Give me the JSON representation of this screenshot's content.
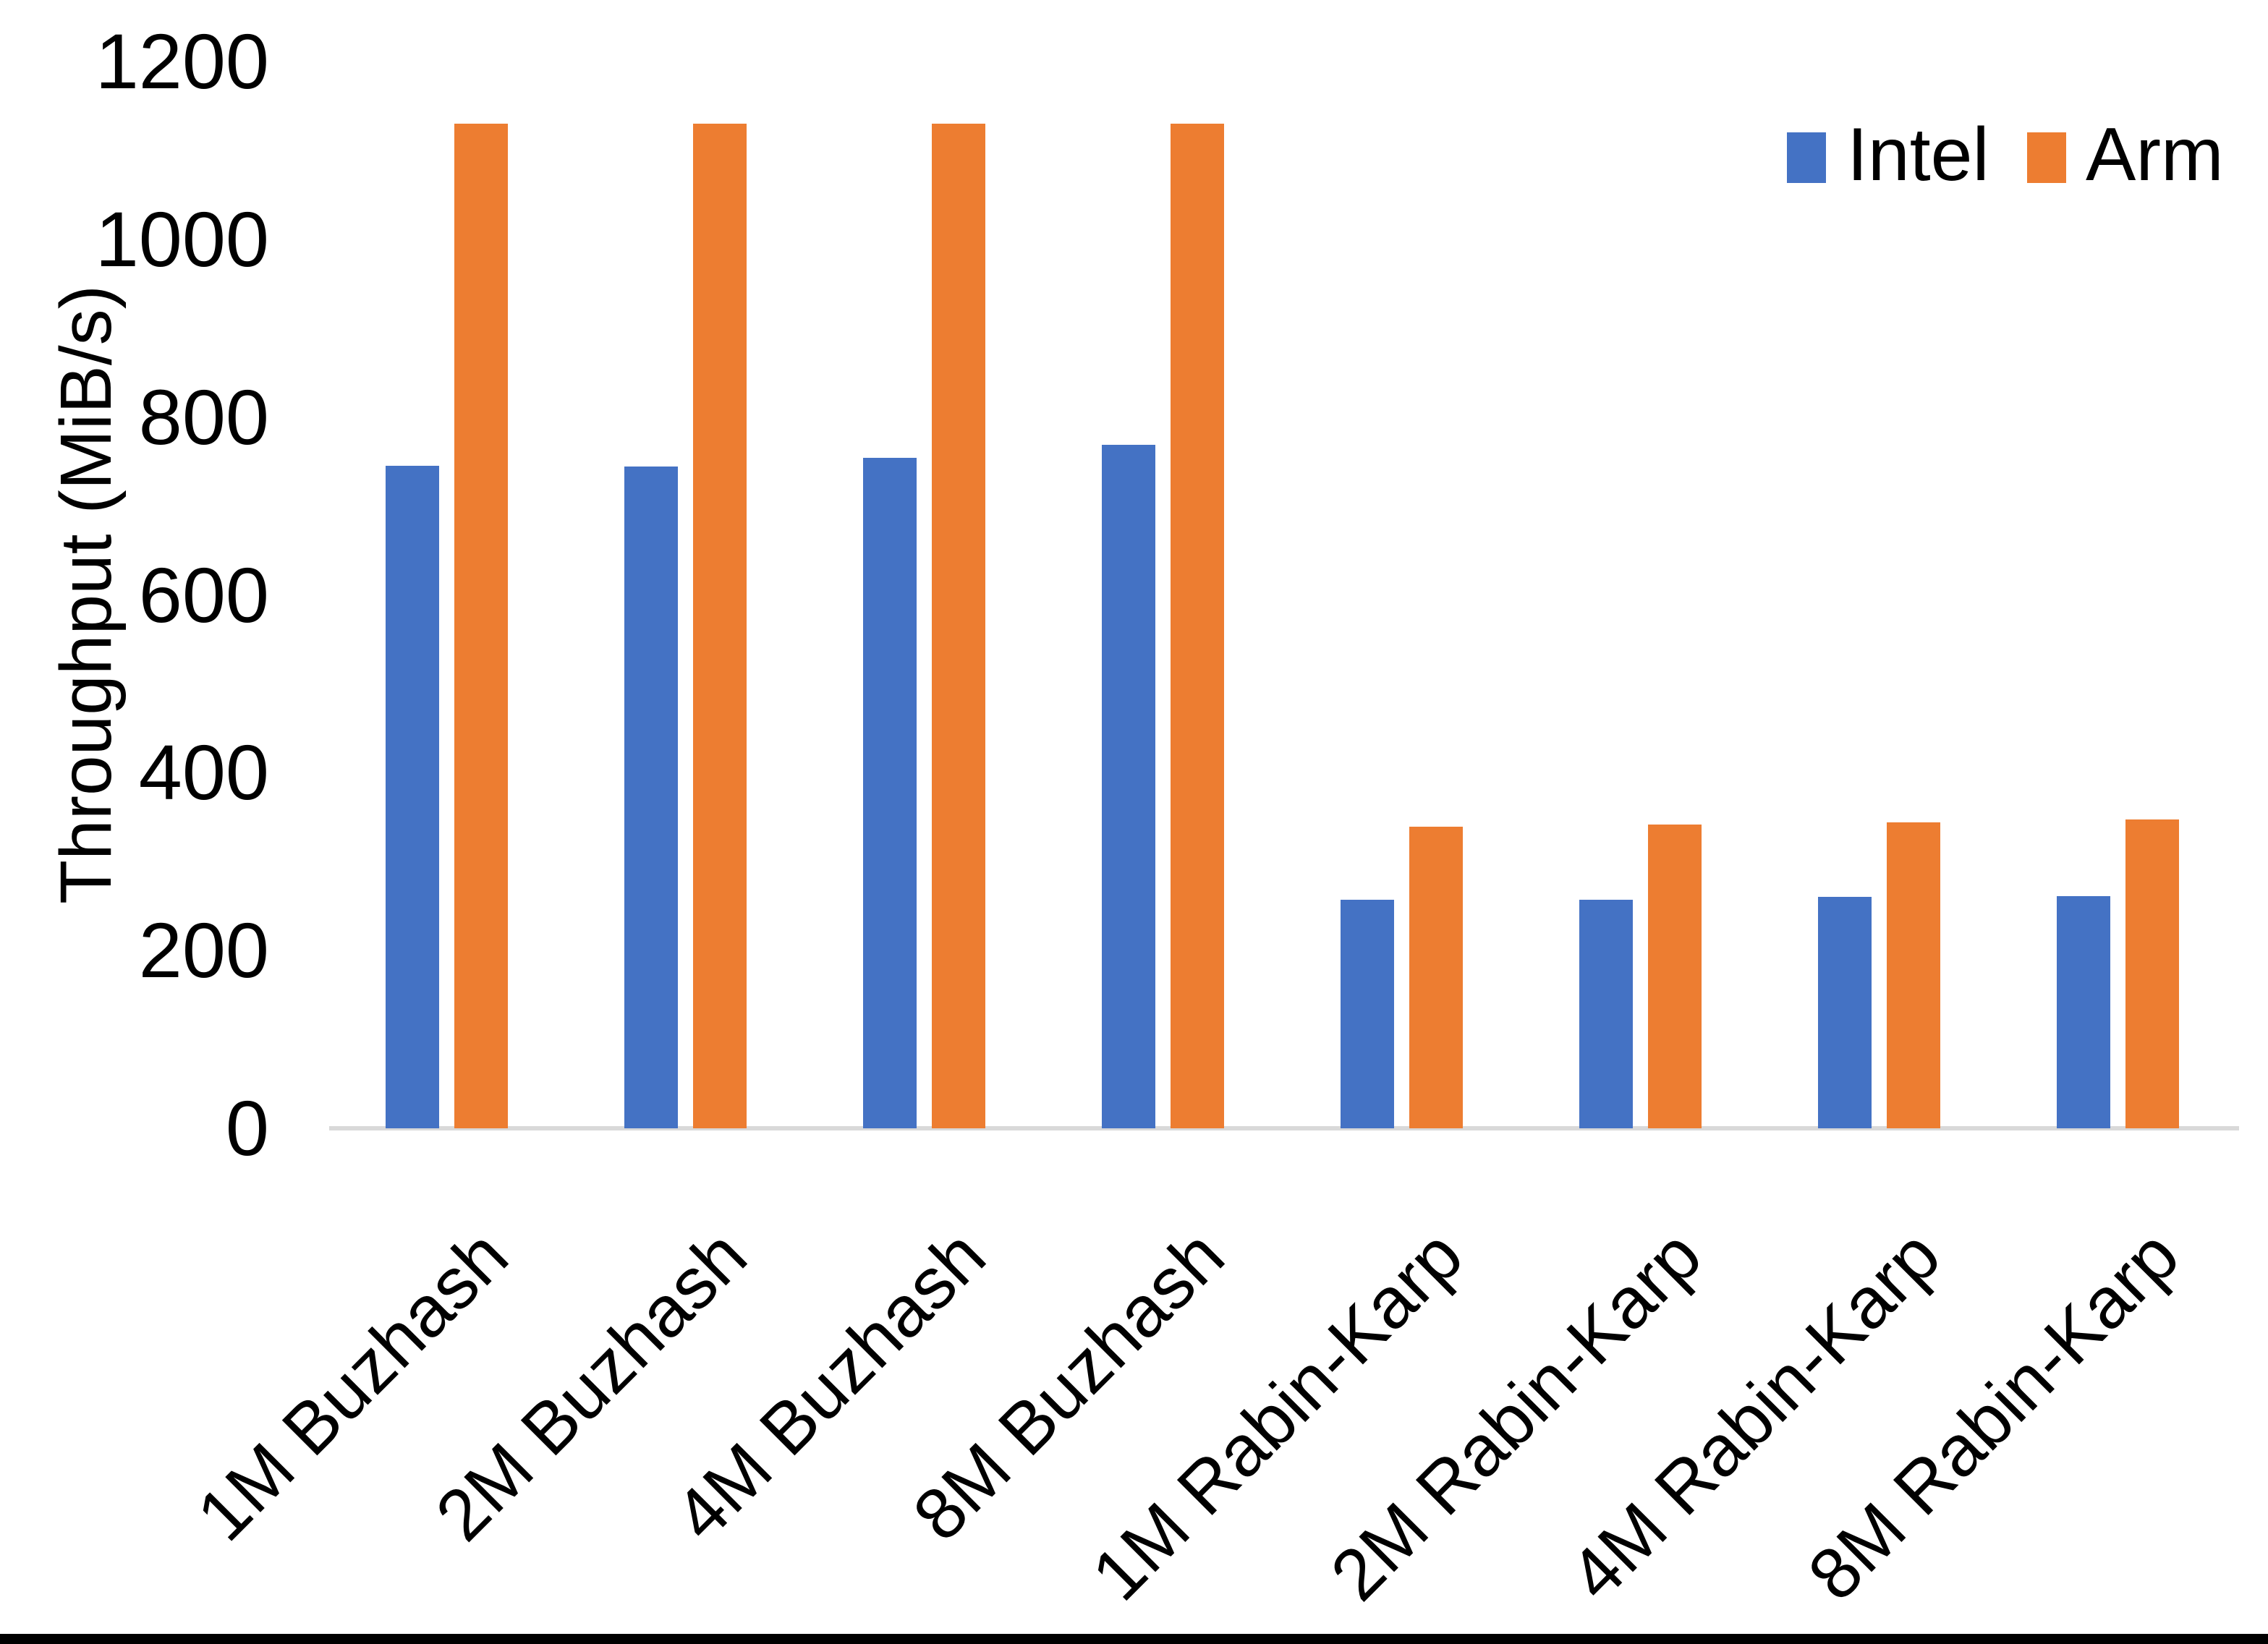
{
  "chart_data": {
    "type": "bar",
    "categories": [
      "1M Buzhash",
      "2M Buzhash",
      "4M Buzhash",
      "8M Buzhash",
      "1M Rabin-Karp",
      "2M Rabin-Karp",
      "4M Rabin-Karp",
      "8M Rabin-Karp"
    ],
    "series": [
      {
        "name": "Intel",
        "color": "#4472C4",
        "values": [
          745,
          744,
          754,
          769,
          257,
          257,
          260,
          261
        ]
      },
      {
        "name": "Arm",
        "color": "#ED7D31",
        "values": [
          1130,
          1130,
          1130,
          1130,
          339,
          342,
          344,
          347
        ]
      }
    ],
    "title": "",
    "xlabel": "",
    "ylabel": "Throughput (MiB/s)",
    "ylim": [
      0,
      1200
    ],
    "yticks": [
      0,
      200,
      400,
      600,
      800,
      1000,
      1200
    ],
    "grid": false,
    "legend_position": "top-right",
    "axis_line_color": "#D9D9D9",
    "text_color": "#000000",
    "background_color": "#FFFFFF"
  }
}
